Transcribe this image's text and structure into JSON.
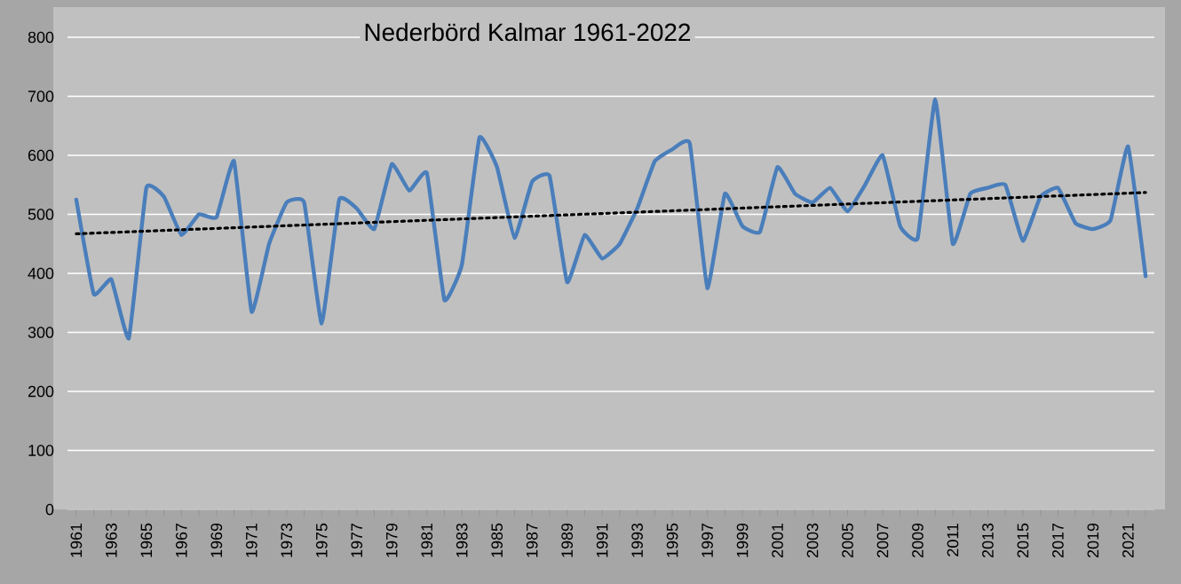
{
  "chart_data": {
    "type": "line",
    "title": "Nederbörd Kalmar 1961-2022",
    "x": [
      1961,
      1962,
      1963,
      1964,
      1965,
      1966,
      1967,
      1968,
      1969,
      1970,
      1971,
      1972,
      1973,
      1974,
      1975,
      1976,
      1977,
      1978,
      1979,
      1980,
      1981,
      1982,
      1983,
      1984,
      1985,
      1986,
      1987,
      1988,
      1989,
      1990,
      1991,
      1992,
      1993,
      1994,
      1995,
      1996,
      1997,
      1998,
      1999,
      2000,
      2001,
      2002,
      2003,
      2004,
      2005,
      2006,
      2007,
      2008,
      2009,
      2010,
      2011,
      2012,
      2013,
      2014,
      2015,
      2016,
      2017,
      2018,
      2019,
      2020,
      2021,
      2022
    ],
    "series": [
      {
        "color": "#4a7ebb",
        "line_style": "solid",
        "values": [
          525,
          365,
          390,
          290,
          545,
          530,
          465,
          500,
          495,
          590,
          335,
          450,
          520,
          520,
          315,
          525,
          510,
          475,
          585,
          540,
          570,
          355,
          415,
          630,
          580,
          460,
          555,
          565,
          385,
          465,
          425,
          450,
          510,
          590,
          610,
          620,
          375,
          535,
          480,
          470,
          580,
          535,
          520,
          545,
          505,
          550,
          600,
          480,
          460,
          695,
          450,
          535,
          545,
          550,
          455,
          530,
          545,
          485,
          475,
          490,
          615,
          395
        ]
      },
      {
        "type": "line",
        "color": "#000000",
        "line_style": "dotted",
        "x": [
          1961,
          2022
        ],
        "values": [
          467,
          537
        ]
      }
    ],
    "xlim": [
      1960.5,
      2022.5
    ],
    "xticks": [
      1961,
      {
        "value": 1962,
        "label": null
      },
      1963,
      {
        "value": 1964,
        "label": null
      },
      1965,
      {
        "value": 1966,
        "label": null
      },
      1967,
      {
        "value": 1968,
        "label": null
      },
      1969,
      {
        "value": 1970,
        "label": null
      },
      1971,
      {
        "value": 1972,
        "label": null
      },
      1973,
      {
        "value": 1974,
        "label": null
      },
      1975,
      {
        "value": 1976,
        "label": null
      },
      1977,
      {
        "value": 1978,
        "label": null
      },
      1979,
      {
        "value": 1980,
        "label": null
      },
      1981,
      {
        "value": 1982,
        "label": null
      },
      1983,
      {
        "value": 1984,
        "label": null
      },
      1985,
      {
        "value": 1986,
        "label": null
      },
      1987,
      {
        "value": 1988,
        "label": null
      },
      1989,
      {
        "value": 1990,
        "label": null
      },
      1991,
      {
        "value": 1992,
        "label": null
      },
      1993,
      {
        "value": 1994,
        "label": null
      },
      1995,
      {
        "value": 1996,
        "label": null
      },
      1997,
      {
        "value": 1998,
        "label": null
      },
      1999,
      {
        "value": 2000,
        "label": null
      },
      2001,
      {
        "value": 2002,
        "label": null
      },
      2003,
      {
        "value": 2004,
        "label": null
      },
      2005,
      {
        "value": 2006,
        "label": null
      },
      2007,
      {
        "value": 2008,
        "label": null
      },
      2009,
      {
        "value": 2010,
        "label": null
      },
      2011,
      {
        "value": 2012,
        "label": null
      },
      2013,
      {
        "value": 2014,
        "label": null
      },
      2015,
      {
        "value": 2016,
        "label": null
      },
      2017,
      {
        "value": 2018,
        "label": null
      },
      2019,
      {
        "value": 2020,
        "label": null
      },
      2021,
      {
        "value": 2022,
        "label": null
      }
    ],
    "ylim": [
      0,
      800
    ],
    "yticks": [
      0,
      100,
      200,
      300,
      400,
      500,
      600,
      700,
      800
    ],
    "grid": "y"
  }
}
